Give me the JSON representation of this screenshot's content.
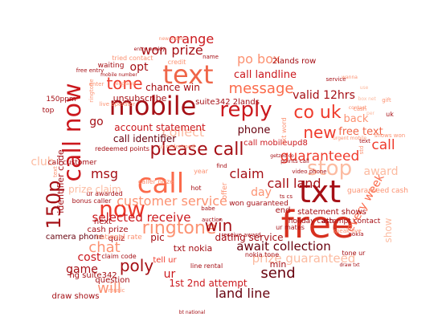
{
  "words": [
    {
      "text": "free",
      "color": "#d7301f"
    },
    {
      "text": "mobile",
      "color": "#a50f15"
    },
    {
      "text": "text",
      "color": "#ef6548"
    },
    {
      "text": "call now",
      "color": "#cb181d"
    },
    {
      "text": "now",
      "color": "#ef3b2c"
    },
    {
      "text": "txt",
      "color": "#a50f15"
    },
    {
      "text": "call",
      "color": "#fb6a4a"
    },
    {
      "text": "reply",
      "color": "#cb181d"
    },
    {
      "text": "please call",
      "color": "#a50f15"
    },
    {
      "text": "150p",
      "color": "#a50f15"
    },
    {
      "text": "stop",
      "color": "#fcbba1"
    },
    {
      "text": "co uk",
      "color": "#ef3b2c"
    },
    {
      "text": "ringtone",
      "color": "#fc9272"
    },
    {
      "text": "new",
      "color": "#ef3b2c"
    },
    {
      "text": "message",
      "color": "#fb6a4a"
    },
    {
      "text": "customer service",
      "color": "#fc9272"
    },
    {
      "text": "win",
      "color": "#a50f15"
    },
    {
      "text": "await collection",
      "color": "#67000d"
    },
    {
      "text": "chat",
      "color": "#fc9272"
    },
    {
      "text": "poly",
      "color": "#a50f15"
    },
    {
      "text": "selected receive",
      "color": "#cb181d"
    },
    {
      "text": "send",
      "color": "#67000d"
    },
    {
      "text": "land line",
      "color": "#67000d"
    },
    {
      "text": "won prize",
      "color": "#a50f15"
    },
    {
      "text": "orange",
      "color": "#cb181d"
    },
    {
      "text": "prize guaranteed",
      "color": "#fcbba1"
    },
    {
      "text": "will",
      "color": "#fc9272"
    },
    {
      "text": "tone",
      "color": "#ef3b2c"
    },
    {
      "text": "collect",
      "color": "#fcbba1"
    },
    {
      "text": "msg",
      "color": "#a50f15"
    },
    {
      "text": "guaranteed",
      "color": "#ef3b2c"
    },
    {
      "text": "call land",
      "color": "#a50f15"
    },
    {
      "text": "call",
      "color": "#ef3b2c"
    },
    {
      "text": "claim",
      "color": "#a50f15"
    },
    {
      "text": "every week",
      "color": "#fb6a4a"
    },
    {
      "text": "po box",
      "color": "#fc9272"
    },
    {
      "text": "call landline",
      "color": "#cb181d"
    },
    {
      "text": "valid 12hrs",
      "color": "#a50f15"
    },
    {
      "text": "day",
      "color": "#fc9272"
    },
    {
      "text": "cost",
      "color": "#cb181d"
    },
    {
      "text": "game",
      "color": "#a50f15"
    },
    {
      "text": "ur",
      "color": "#cb181d"
    },
    {
      "text": "go",
      "color": "#a50f15"
    },
    {
      "text": "club",
      "color": "#fcbba1"
    },
    {
      "text": "opt",
      "color": "#a50f15"
    },
    {
      "text": "chance win",
      "color": "#a50f15"
    },
    {
      "text": "account statement",
      "color": "#cb181d"
    },
    {
      "text": "call identifier",
      "color": "#67000d"
    },
    {
      "text": "phone",
      "color": "#67000d"
    },
    {
      "text": "free text",
      "color": "#ef6548"
    },
    {
      "text": "back",
      "color": "#fc9272"
    },
    {
      "text": "unsubscribe",
      "color": "#a50f15"
    },
    {
      "text": "identifier code",
      "color": "#a50f15"
    },
    {
      "text": "prize claim",
      "color": "#fcbba1"
    },
    {
      "text": "2lands row",
      "color": "#a50f15"
    },
    {
      "text": "suite342 2lands",
      "color": "#a50f15"
    },
    {
      "text": "call mobileupd8",
      "color": "#cb181d"
    },
    {
      "text": "1st 2nd attempt",
      "color": "#cb181d"
    },
    {
      "text": "dating service",
      "color": "#a50f15"
    },
    {
      "text": "camera phone",
      "color": "#67000d"
    },
    {
      "text": "pic",
      "color": "#a50f15"
    },
    {
      "text": "txt nokia",
      "color": "#a50f15"
    },
    {
      "text": "award",
      "color": "#fcbba1"
    },
    {
      "text": "show",
      "color": "#fcbba1"
    },
    {
      "text": "tell ur",
      "color": "#ef3b2c"
    },
    {
      "text": "next",
      "color": "#a50f15"
    },
    {
      "text": "cash prize",
      "color": "#a50f15"
    },
    {
      "text": "quiz",
      "color": "#a50f15"
    },
    {
      "text": "question",
      "color": "#a50f15"
    },
    {
      "text": "hg suite342",
      "color": "#a50f15"
    },
    {
      "text": "draw shows",
      "color": "#a50f15"
    },
    {
      "text": "min",
      "color": "#a50f15"
    },
    {
      "text": "end",
      "color": "#a50f15"
    },
    {
      "text": "statement shows",
      "color": "#a50f15"
    },
    {
      "text": "holiday cash",
      "color": "#a50f15"
    },
    {
      "text": "attempt contact",
      "color": "#a50f15"
    },
    {
      "text": "guaranteed cash",
      "color": "#fc9272"
    },
    {
      "text": "won guaranteed",
      "color": "#a50f15"
    },
    {
      "text": "call customer",
      "color": "#a50f15"
    },
    {
      "text": "redeemed points",
      "color": "#a50f15"
    },
    {
      "text": "ur awarded",
      "color": "#a50f15"
    },
    {
      "text": "bonus caller",
      "color": "#a50f15"
    },
    {
      "text": "caller prize",
      "color": "#fc9272"
    },
    {
      "text": "claim code",
      "color": "#a50f15"
    },
    {
      "text": "national rate",
      "color": "#fc9272"
    },
    {
      "text": "waiting",
      "color": "#a50f15"
    },
    {
      "text": "tried contact",
      "color": "#fc9272"
    },
    {
      "text": "credit",
      "color": "#fc9272"
    },
    {
      "text": "name",
      "color": "#a50f15"
    },
    {
      "text": "free entry",
      "color": "#a50f15"
    },
    {
      "text": "150ppm",
      "color": "#a50f15"
    },
    {
      "text": "top",
      "color": "#a50f15"
    },
    {
      "text": "year",
      "color": "#fc9272"
    },
    {
      "text": "hot",
      "color": "#a50f15"
    },
    {
      "text": "babe",
      "color": "#a50f15"
    },
    {
      "text": "offer",
      "color": "#fc9272"
    },
    {
      "text": "uk",
      "color": "#a50f15"
    },
    {
      "text": "txt word",
      "color": "#fc9272"
    },
    {
      "text": "ur mates",
      "color": "#a50f15"
    },
    {
      "text": "nokia tone",
      "color": "#a50f15"
    },
    {
      "text": "receive award",
      "color": "#a50f15"
    },
    {
      "text": "tone ur",
      "color": "#a50f15"
    },
    {
      "text": "line rental",
      "color": "#a50f15"
    },
    {
      "text": "video phone",
      "color": "#a50f15"
    },
    {
      "text": "enter",
      "color": "#fc9272"
    },
    {
      "text": "ts cs",
      "color": "#a50f15"
    },
    {
      "text": "points call",
      "color": "#a50f15"
    },
    {
      "text": "nokia",
      "color": "#a50f15"
    },
    {
      "text": "text",
      "color": "#a50f15"
    },
    {
      "text": "speak live",
      "color": "#fc9272"
    },
    {
      "text": "live operator",
      "color": "#fc9272"
    },
    {
      "text": "ur redeemed",
      "color": "#fc9272"
    },
    {
      "text": "service",
      "color": "#a50f15"
    },
    {
      "text": "std",
      "color": "#fc9272"
    },
    {
      "text": "find",
      "color": "#a50f15"
    },
    {
      "text": "auction",
      "color": "#a50f15"
    },
    {
      "text": "music",
      "color": "#fc9272"
    },
    {
      "text": "draw txt",
      "color": "#a50f15"
    },
    {
      "text": "shows won",
      "color": "#fc9272"
    },
    {
      "text": "urgent mobile",
      "color": "#fc9272"
    },
    {
      "text": "gift",
      "color": "#fc9272"
    },
    {
      "text": "mobile number",
      "color": "#a50f15"
    },
    {
      "text": "net",
      "color": "#fcbba1"
    },
    {
      "text": "text",
      "color": "#fc9272"
    },
    {
      "text": "ringtone",
      "color": "#fc9272"
    },
    {
      "text": "new video",
      "color": "#fc9272"
    },
    {
      "text": "cash",
      "color": "#fc9272"
    },
    {
      "text": "wanna",
      "color": "#fc9272"
    },
    {
      "text": "use",
      "color": "#fcbba1"
    },
    {
      "text": "box",
      "color": "#fcbba1"
    },
    {
      "text": "per",
      "color": "#fcbba1"
    },
    {
      "text": "contact",
      "color": "#fc9272"
    },
    {
      "text": "entry weekly",
      "color": "#a50f15"
    },
    {
      "text": "england",
      "color": "#fc9272"
    },
    {
      "text": "getzed co",
      "color": "#a50f15"
    },
    {
      "text": "bt national",
      "color": "#a50f15"
    }
  ]
}
